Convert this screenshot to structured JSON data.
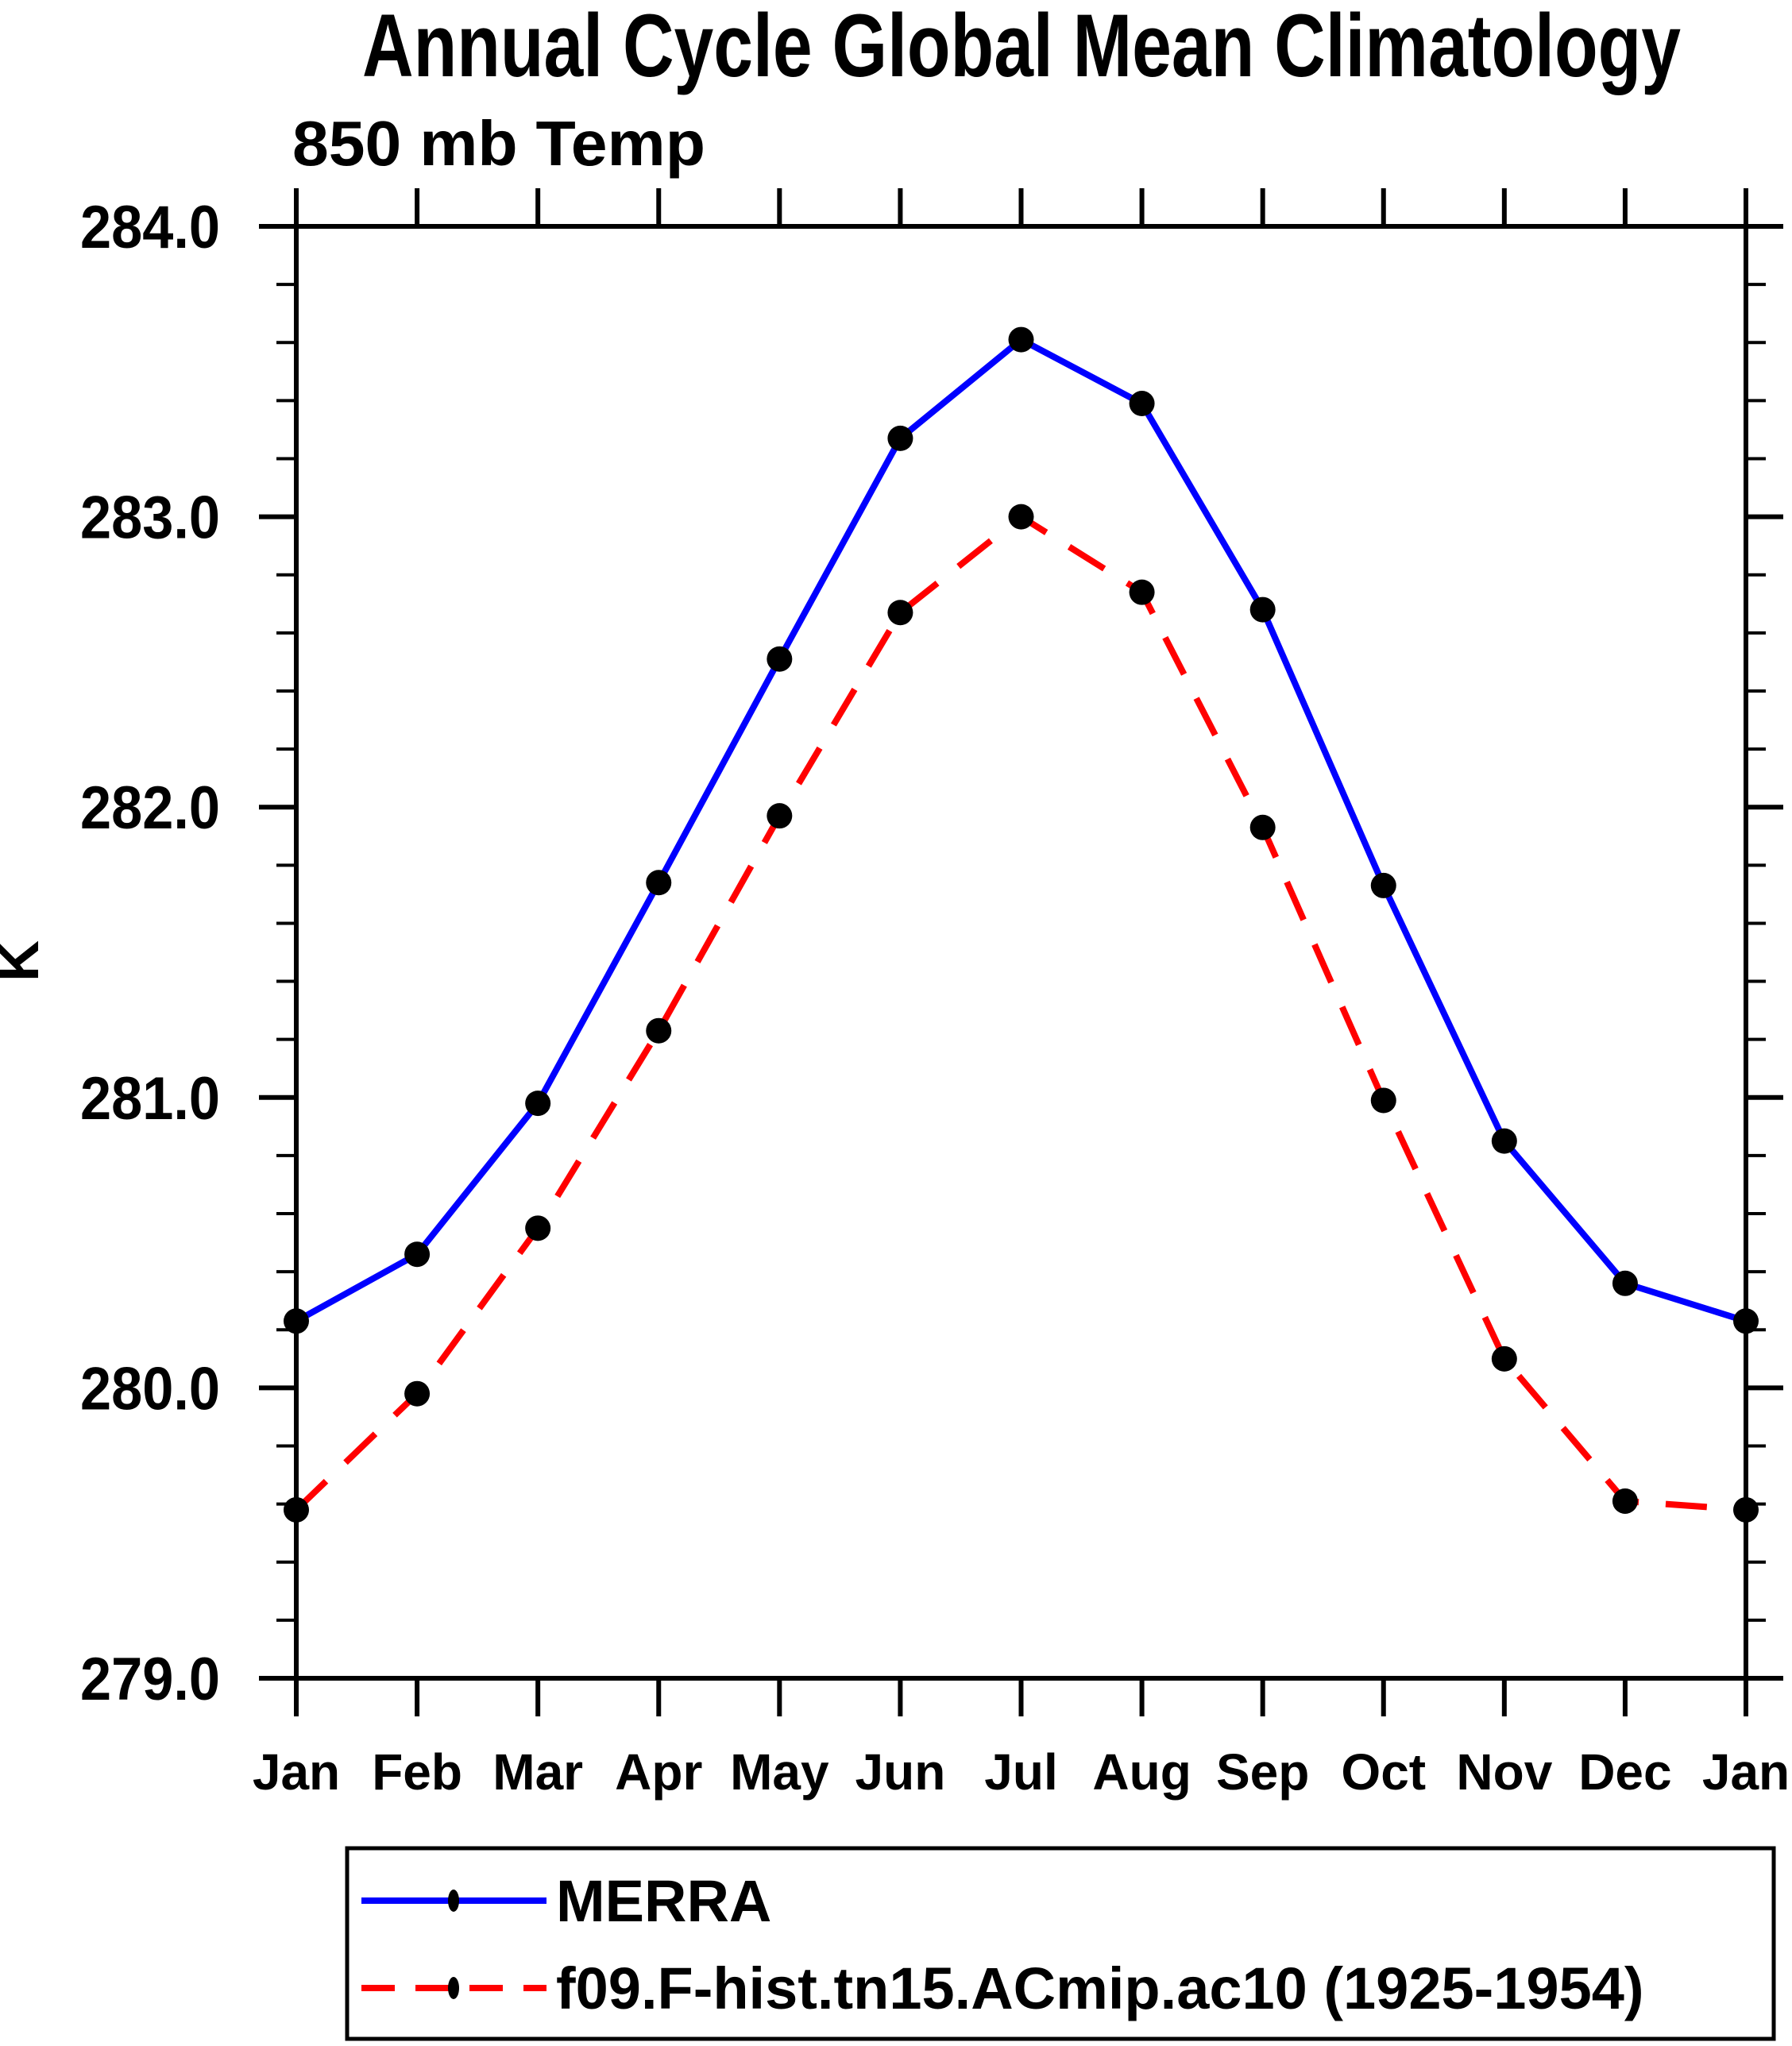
{
  "chart_data": {
    "type": "line",
    "title": "Annual Cycle Global Mean Climatology",
    "subtitle": "850 mb Temp",
    "ylabel": "K",
    "ylim": [
      279.0,
      284.0
    ],
    "y_major_step": 1.0,
    "y_minor_step": 0.2,
    "y_tick_labels": [
      "279.0",
      "280.0",
      "281.0",
      "282.0",
      "283.0",
      "284.0"
    ],
    "grid": false,
    "legend_position": "bottom",
    "categories": [
      "Jan",
      "Feb",
      "Mar",
      "Apr",
      "May",
      "Jun",
      "Jul",
      "Aug",
      "Sep",
      "Oct",
      "Nov",
      "Dec",
      "Jan"
    ],
    "series": [
      {
        "name": "MERRA",
        "color": "#0000ff",
        "line": "solid",
        "marker": "filled-circle",
        "marker_color": "#000000",
        "values": [
          280.23,
          280.46,
          280.98,
          281.74,
          282.51,
          283.27,
          283.61,
          283.39,
          282.68,
          281.73,
          280.85,
          280.36,
          280.23
        ]
      },
      {
        "name": "f09.F-hist.tn15.ACmip.ac10 (1925-1954)",
        "color": "#ff0000",
        "line": "dashed",
        "marker": "filled-circle",
        "marker_color": "#000000",
        "values": [
          279.58,
          279.98,
          280.55,
          281.23,
          281.97,
          282.67,
          283.0,
          282.74,
          281.93,
          280.99,
          280.1,
          279.61,
          279.58
        ]
      }
    ],
    "axis_color": "#000000"
  }
}
